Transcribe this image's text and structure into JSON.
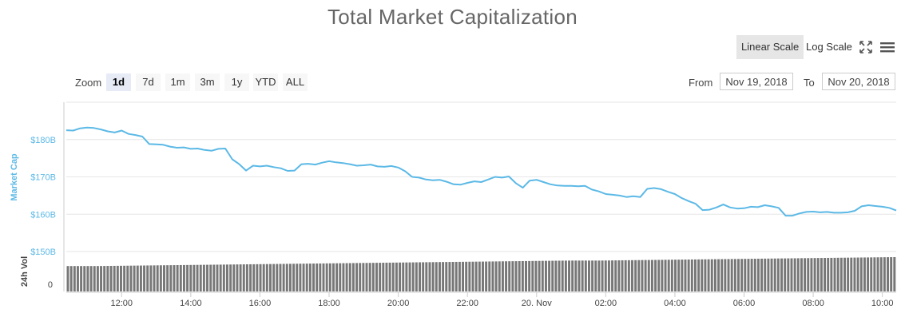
{
  "title": "Total Market Capitalization",
  "scale": {
    "linear_label": "Linear Scale",
    "log_label": "Log Scale",
    "active": "linear"
  },
  "icons": {
    "fullscreen": "fullscreen-icon",
    "menu": "hamburger-menu-icon"
  },
  "zoom": {
    "label": "Zoom",
    "options": [
      "1d",
      "7d",
      "1m",
      "3m",
      "1y",
      "YTD",
      "ALL"
    ],
    "selected": "1d"
  },
  "range": {
    "from_label": "From",
    "from_value": "Nov 19, 2018",
    "to_label": "To",
    "to_value": "Nov 20, 2018"
  },
  "colors": {
    "line": "#5cb9e6",
    "axis_label": "#5cb9e6",
    "volume": "#777777",
    "grid": "#e6e6e6"
  },
  "chart_data": [
    {
      "type": "line",
      "ylabel": "Market Cap",
      "yticks": [
        "$150B",
        "$160B",
        "$170B",
        "$180B"
      ],
      "ytick_values": [
        150,
        160,
        170,
        180
      ],
      "ylim": [
        150,
        190
      ],
      "xticks": [
        "12:00",
        "14:00",
        "16:00",
        "18:00",
        "20:00",
        "22:00",
        "20. Nov",
        "02:00",
        "04:00",
        "06:00",
        "08:00",
        "10:00"
      ],
      "xtick_hours": [
        12,
        14,
        16,
        18,
        20,
        22,
        24,
        26,
        28,
        30,
        32,
        34
      ],
      "xlim_hours": [
        10.4,
        34.4
      ],
      "grid": true,
      "series": [
        {
          "x": [
            10.4,
            10.6,
            10.8,
            11.0,
            11.2,
            11.4,
            11.6,
            11.8,
            12.0,
            12.2,
            12.4,
            12.6,
            12.8,
            13.0,
            13.2,
            13.4,
            13.6,
            13.8,
            14.0,
            14.2,
            14.4,
            14.6,
            14.8,
            15.0,
            15.2,
            15.4,
            15.6,
            15.8,
            16.0,
            16.2,
            16.4,
            16.6,
            16.8,
            17.0,
            17.2,
            17.4,
            17.6,
            17.8,
            18.0,
            18.2,
            18.4,
            18.6,
            18.8,
            19.0,
            19.2,
            19.4,
            19.6,
            19.8,
            20.0,
            20.2,
            20.4,
            20.6,
            20.8,
            21.0,
            21.2,
            21.4,
            21.6,
            21.8,
            22.0,
            22.2,
            22.4,
            22.6,
            22.8,
            23.0,
            23.2,
            23.4,
            23.6,
            23.8,
            24.0,
            24.2,
            24.4,
            24.6,
            24.8,
            25.0,
            25.2,
            25.4,
            25.6,
            25.8,
            26.0,
            26.2,
            26.4,
            26.6,
            26.8,
            27.0,
            27.2,
            27.4,
            27.6,
            27.8,
            28.0,
            28.2,
            28.4,
            28.6,
            28.8,
            29.0,
            29.2,
            29.4,
            29.6,
            29.8,
            30.0,
            30.2,
            30.4,
            30.6,
            30.8,
            31.0,
            31.2,
            31.4,
            31.6,
            31.8,
            32.0,
            32.2,
            32.4,
            32.6,
            32.8,
            33.0,
            33.2,
            33.4,
            33.6,
            33.8,
            34.0,
            34.2,
            34.4
          ],
          "y": [
            182.5,
            182.4,
            183.0,
            183.2,
            183.1,
            182.7,
            182.2,
            181.9,
            182.4,
            181.5,
            181.2,
            180.8,
            178.8,
            178.7,
            178.6,
            178.1,
            177.8,
            177.9,
            177.5,
            177.6,
            177.2,
            177.0,
            177.5,
            177.6,
            174.7,
            173.4,
            171.7,
            173.0,
            172.8,
            173.0,
            172.6,
            172.3,
            171.6,
            171.7,
            173.4,
            173.5,
            173.3,
            173.8,
            174.2,
            173.9,
            173.7,
            173.4,
            173.0,
            173.1,
            173.3,
            172.8,
            172.7,
            172.9,
            172.5,
            171.5,
            170.0,
            169.8,
            169.3,
            169.1,
            169.2,
            168.7,
            168.0,
            167.9,
            168.4,
            168.8,
            168.6,
            169.3,
            170.0,
            169.8,
            170.1,
            168.3,
            167.1,
            169.0,
            169.2,
            168.6,
            168.0,
            167.7,
            167.6,
            167.6,
            167.5,
            167.6,
            166.6,
            166.1,
            165.4,
            165.2,
            165.0,
            164.6,
            164.8,
            164.6,
            166.8,
            167.0,
            166.7,
            166.0,
            165.4,
            164.3,
            163.5,
            162.8,
            161.1,
            161.2,
            161.8,
            162.6,
            161.8,
            161.5,
            161.6,
            162.0,
            161.9,
            162.4,
            162.1,
            161.7,
            159.6,
            159.6,
            160.2,
            160.6,
            160.7,
            160.5,
            160.6,
            160.4,
            160.4,
            160.5,
            160.9,
            162.1,
            162.4,
            162.2,
            162.0,
            161.7,
            161.0
          ]
        }
      ]
    },
    {
      "type": "bar",
      "ylabel": "24h Vol",
      "yticks": [
        "0"
      ],
      "ytick_values": [
        0
      ],
      "volume_relative": [
        0.74,
        0.74,
        0.75,
        0.76,
        0.77,
        0.78,
        0.79,
        0.8,
        0.81,
        0.82,
        0.83,
        0.84,
        0.85,
        0.86,
        0.87,
        0.88,
        0.89,
        0.9,
        0.9,
        0.91,
        0.92,
        0.93,
        0.94,
        0.95,
        0.96,
        0.97,
        0.98,
        0.99,
        1.0
      ]
    }
  ]
}
